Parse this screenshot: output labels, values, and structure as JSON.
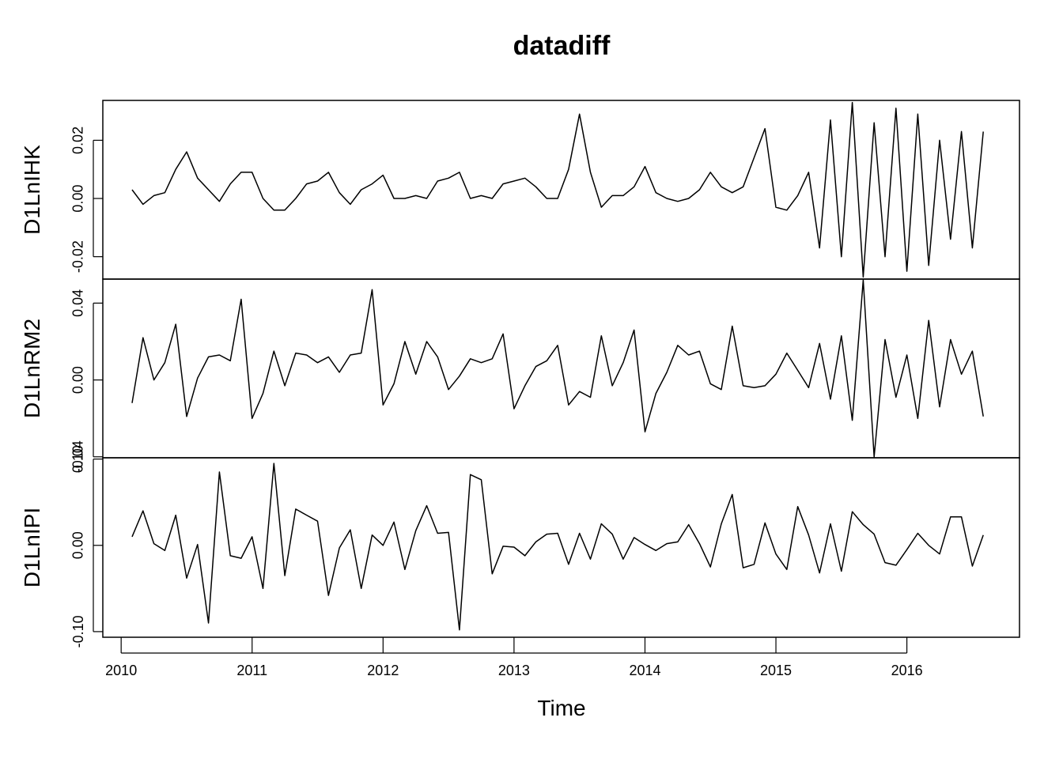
{
  "chart_data": {
    "type": "line",
    "title": "datadiff",
    "xlabel": "Time",
    "x": {
      "start": 2010.0833,
      "step": 0.0833333,
      "xlim": [
        2009.86,
        2016.86
      ],
      "ticks": [
        2010,
        2011,
        2012,
        2013,
        2014,
        2015,
        2016
      ],
      "tick_labels": [
        "2010",
        "2011",
        "2012",
        "2013",
        "2014",
        "2015",
        "2016"
      ]
    },
    "series": [
      {
        "name": "D1LnIHK",
        "ylim": [
          -0.0277,
          0.0337
        ],
        "ticks": [
          -0.02,
          0.0,
          0.02
        ],
        "tick_labels": [
          "-0.02",
          "0.00",
          "0.02"
        ],
        "values": [
          0.003,
          -0.002,
          0.001,
          0.002,
          0.01,
          0.016,
          0.007,
          0.003,
          -0.001,
          0.005,
          0.009,
          0.009,
          0.0,
          -0.004,
          -0.004,
          0.0,
          0.005,
          0.006,
          0.009,
          0.002,
          -0.002,
          0.003,
          0.005,
          0.008,
          0.0,
          0.0,
          0.001,
          0.0,
          0.006,
          0.007,
          0.009,
          0.0,
          0.001,
          0.0,
          0.005,
          0.006,
          0.007,
          0.004,
          0.0,
          0.0,
          0.01,
          0.029,
          0.009,
          -0.003,
          0.001,
          0.001,
          0.004,
          0.011,
          0.002,
          0.0,
          -0.001,
          0.0,
          0.003,
          0.009,
          0.004,
          0.002,
          0.004,
          0.014,
          0.024,
          -0.003,
          -0.004,
          0.001,
          0.009,
          -0.017,
          0.027,
          -0.02,
          0.033,
          -0.027,
          0.026,
          -0.02,
          0.031,
          -0.025,
          0.029,
          -0.023,
          0.02,
          -0.014,
          0.023,
          -0.017,
          0.023
        ]
      },
      {
        "name": "D1LnRM2",
        "ylim": [
          -0.0405,
          0.0525
        ],
        "ticks": [
          -0.04,
          0.0,
          0.04
        ],
        "tick_labels": [
          "-0.04",
          "0.00",
          "0.04"
        ],
        "values": [
          -0.012,
          0.022,
          0.0,
          0.009,
          0.029,
          -0.019,
          0.001,
          0.012,
          0.013,
          0.01,
          0.042,
          -0.02,
          -0.007,
          0.015,
          -0.003,
          0.014,
          0.013,
          0.009,
          0.012,
          0.004,
          0.013,
          0.014,
          0.047,
          -0.013,
          -0.002,
          0.02,
          0.003,
          0.02,
          0.012,
          -0.005,
          0.002,
          0.011,
          0.009,
          0.011,
          0.024,
          -0.015,
          -0.003,
          0.007,
          0.01,
          0.018,
          -0.013,
          -0.006,
          -0.009,
          0.023,
          -0.003,
          0.009,
          0.026,
          -0.027,
          -0.007,
          0.004,
          0.018,
          0.013,
          0.015,
          -0.002,
          -0.005,
          0.028,
          -0.003,
          -0.004,
          -0.003,
          0.003,
          0.014,
          0.005,
          -0.004,
          0.019,
          -0.01,
          0.023,
          -0.021,
          0.052,
          -0.04,
          0.021,
          -0.009,
          0.013,
          -0.02,
          0.031,
          -0.014,
          0.021,
          0.003,
          0.015,
          -0.019
        ]
      },
      {
        "name": "D1LnIPI",
        "ylim": [
          -0.1065,
          0.1015
        ],
        "ticks": [
          -0.1,
          0.0,
          0.1
        ],
        "tick_labels": [
          "-0.10",
          "0.00",
          "0.10"
        ],
        "values": [
          0.01,
          0.04,
          0.002,
          -0.006,
          0.035,
          -0.038,
          0.001,
          -0.09,
          0.085,
          -0.012,
          -0.015,
          0.01,
          -0.05,
          0.095,
          -0.035,
          0.042,
          0.035,
          0.028,
          -0.058,
          -0.003,
          0.018,
          -0.05,
          0.012,
          0.0,
          0.027,
          -0.028,
          0.017,
          0.046,
          0.014,
          0.015,
          -0.098,
          0.082,
          0.076,
          -0.033,
          -0.001,
          -0.002,
          -0.012,
          0.004,
          0.013,
          0.014,
          -0.022,
          0.014,
          -0.016,
          0.025,
          0.013,
          -0.016,
          0.009,
          0.001,
          -0.006,
          0.002,
          0.004,
          0.024,
          0.002,
          -0.025,
          0.025,
          0.059,
          -0.026,
          -0.022,
          0.026,
          -0.01,
          -0.028,
          0.045,
          0.012,
          -0.032,
          0.025,
          -0.03,
          0.039,
          0.024,
          0.013,
          -0.02,
          -0.023,
          -0.005,
          0.014,
          0.0,
          -0.01,
          0.033,
          0.033,
          -0.024,
          0.012
        ]
      }
    ]
  }
}
